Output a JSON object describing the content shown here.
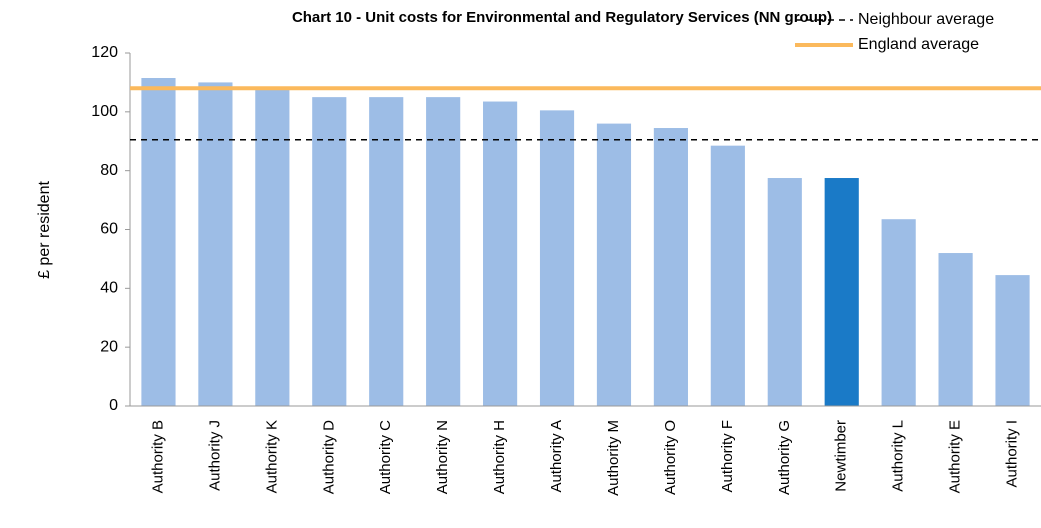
{
  "chart_data": {
    "type": "bar",
    "title": "Chart 10 - Unit costs for Environmental and Regulatory Services (NN group)",
    "y_label": "£ per resident",
    "categories": [
      "Authority B",
      "Authority J",
      "Authority K",
      "Authority D",
      "Authority C",
      "Authority N",
      "Authority H",
      "Authority A",
      "Authority M",
      "Authority O",
      "Authority F",
      "Authority G",
      "Newtimber",
      "Authority L",
      "Authority E",
      "Authority I"
    ],
    "values": [
      111.5,
      110,
      108,
      105,
      105,
      105,
      103.5,
      100.5,
      96,
      94.5,
      88.5,
      77.5,
      77.5,
      63.5,
      52,
      44.5
    ],
    "colors": [
      "#9dbde6",
      "#9dbde6",
      "#9dbde6",
      "#9dbde6",
      "#9dbde6",
      "#9dbde6",
      "#9dbde6",
      "#9dbde6",
      "#9dbde6",
      "#9dbde6",
      "#9dbde6",
      "#9dbde6",
      "#1a7ac7",
      "#9dbde6",
      "#9dbde6",
      "#9dbde6"
    ],
    "reference_lines": [
      {
        "name": "Neighbour average",
        "value": 90.5,
        "color": "#000000",
        "style": "dashed"
      },
      {
        "name": "England average",
        "value": 108,
        "color": "#fbb95c",
        "style": "solid"
      }
    ],
    "ylim": [
      0,
      120
    ],
    "yticks": [
      0,
      20,
      40,
      60,
      80,
      100,
      120
    ],
    "grid": false,
    "legend": "top-right"
  }
}
